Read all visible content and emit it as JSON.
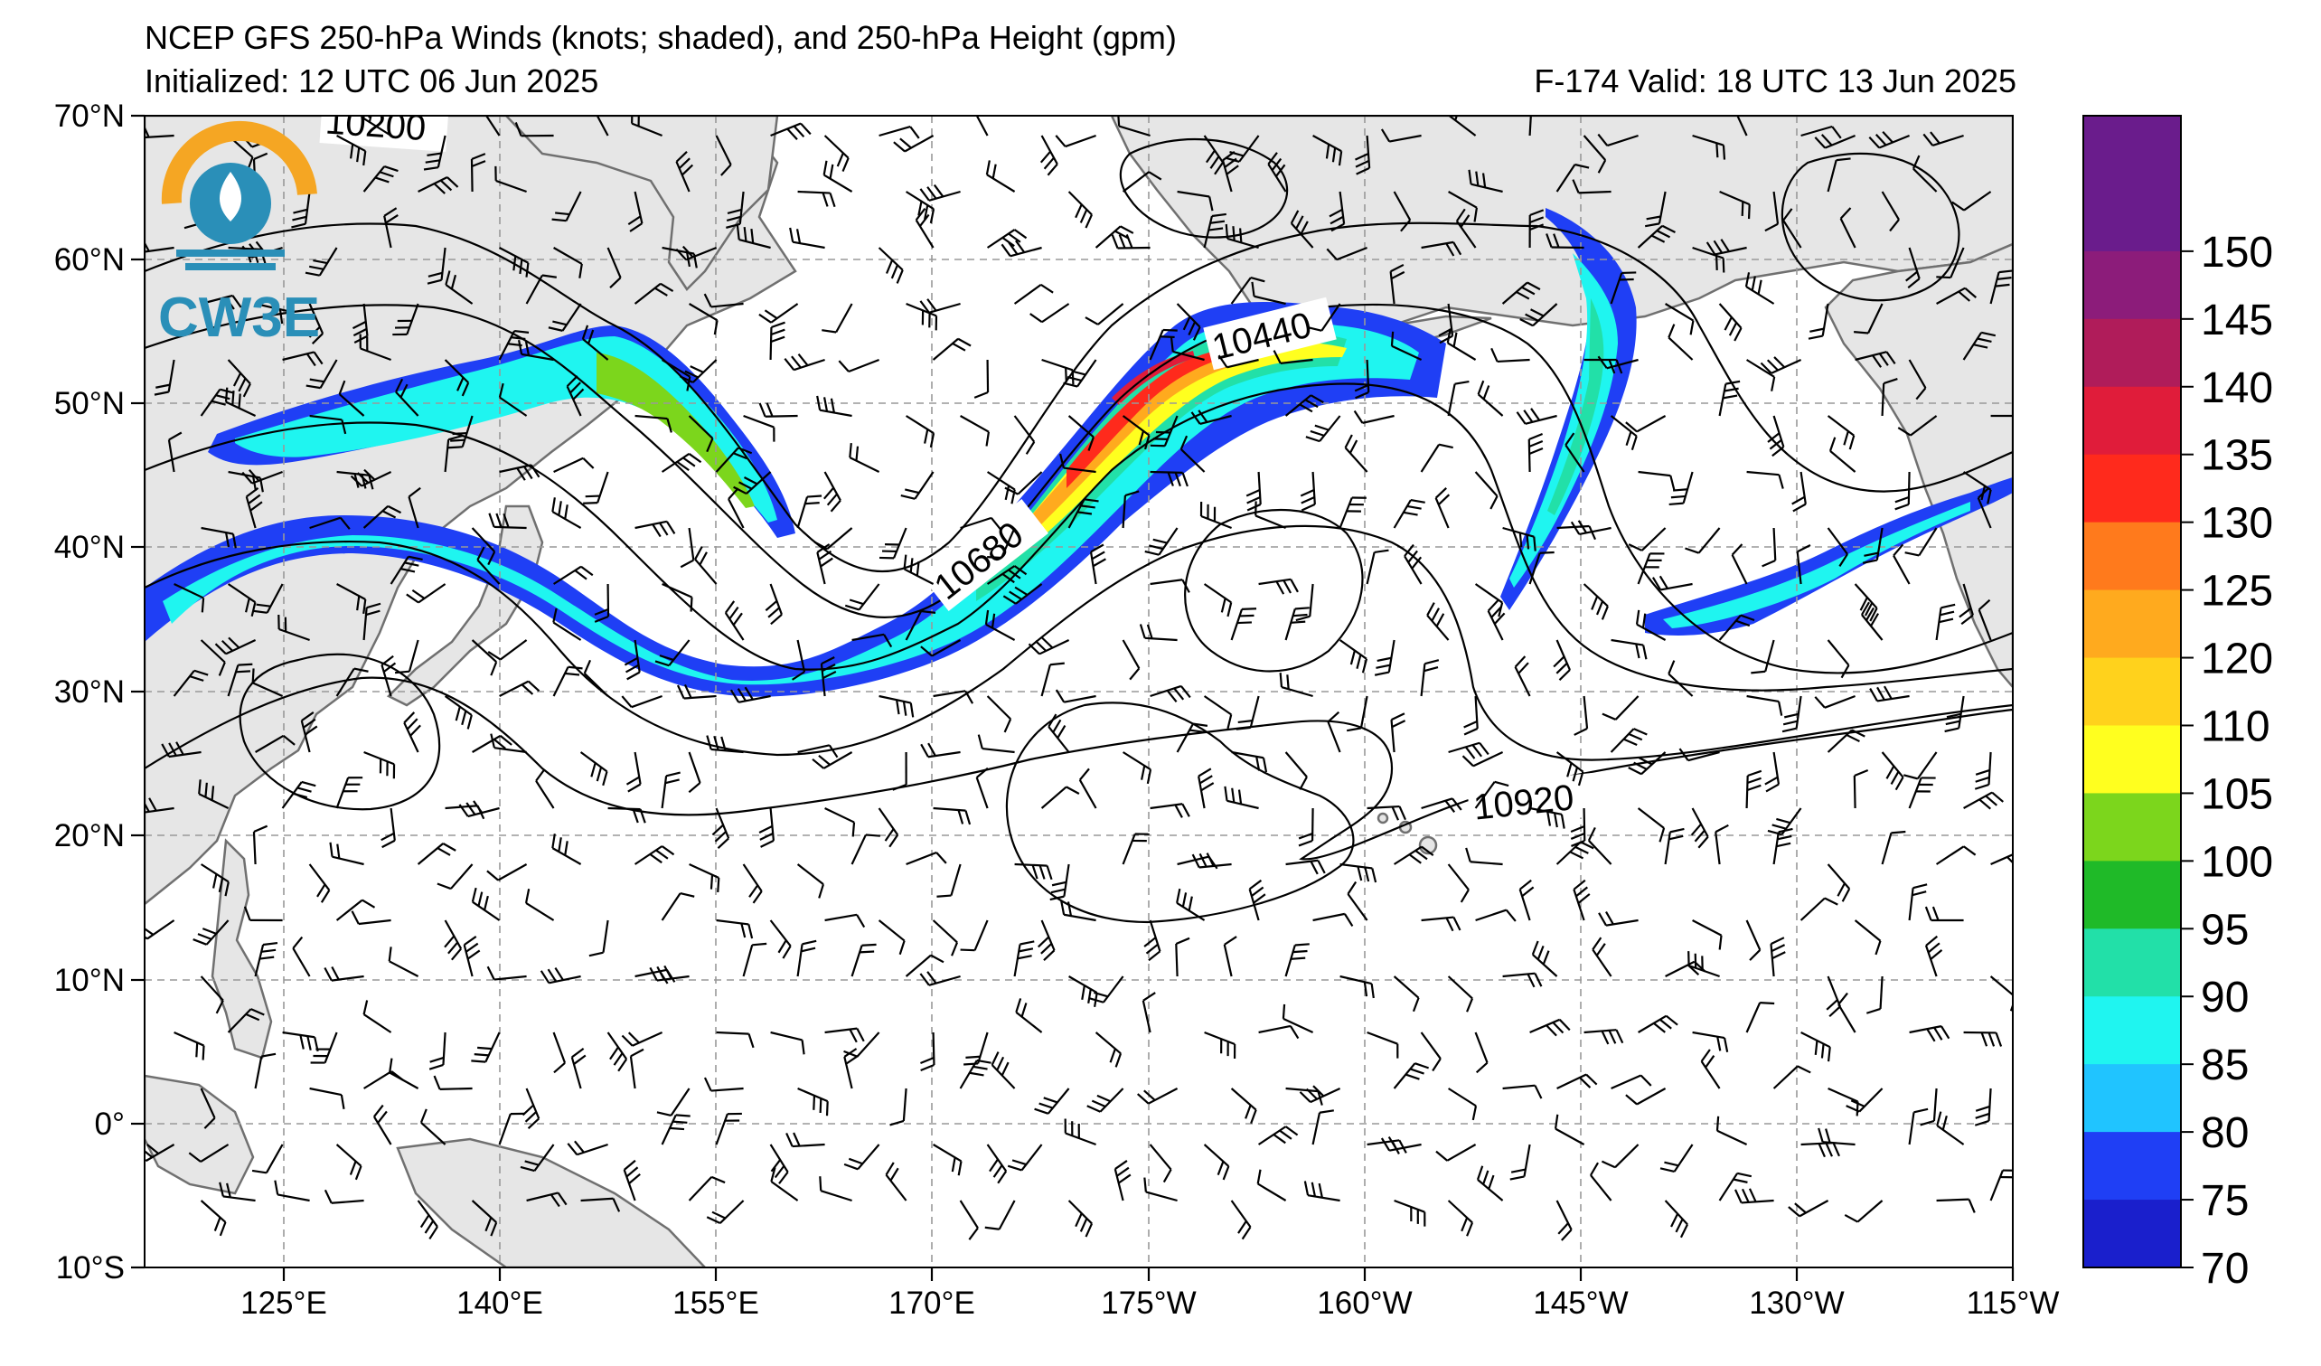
{
  "header": {
    "title": "NCEP GFS 250-hPa Winds (knots; shaded), and 250-hPa Height (gpm)",
    "initialized": "Initialized: 12 UTC 06 Jun 2025",
    "forecast": "F-174  Valid: 18 UTC 13 Jun 2025"
  },
  "logo": {
    "text": "CW3E",
    "colors": {
      "sun": "#f5a623",
      "wave": "#2a8fb8"
    }
  },
  "axes": {
    "lat_ticks": [
      "70°N",
      "60°N",
      "50°N",
      "40°N",
      "30°N",
      "20°N",
      "10°N",
      "0°",
      "10°S"
    ],
    "lon_ticks": [
      "125°E",
      "140°E",
      "155°E",
      "170°E",
      "175°W",
      "160°W",
      "145°W",
      "130°W",
      "115°W"
    ]
  },
  "contour_labels": [
    "10200",
    "10440",
    "10680",
    "10920"
  ],
  "colorbar": {
    "levels": [
      "70",
      "75",
      "80",
      "85",
      "90",
      "95",
      "100",
      "105",
      "110",
      "120",
      "125",
      "130",
      "135",
      "140",
      "145",
      "150"
    ],
    "colors": [
      "#1a1fcc",
      "#1f3ff5",
      "#20c4ff",
      "#1ff5f0",
      "#22e0a8",
      "#1fba28",
      "#7cd61c",
      "#ffff1f",
      "#ffd21c",
      "#ffaa1e",
      "#ff7a1c",
      "#ff2a1c",
      "#e01c3a",
      "#b01c5a",
      "#8c1c7a",
      "#6a1c8c"
    ],
    "top_color": "#6a1c8c"
  },
  "map": {
    "land_color": "#e6e6e6",
    "coast_color": "#707070",
    "grid_color": "#999999"
  }
}
